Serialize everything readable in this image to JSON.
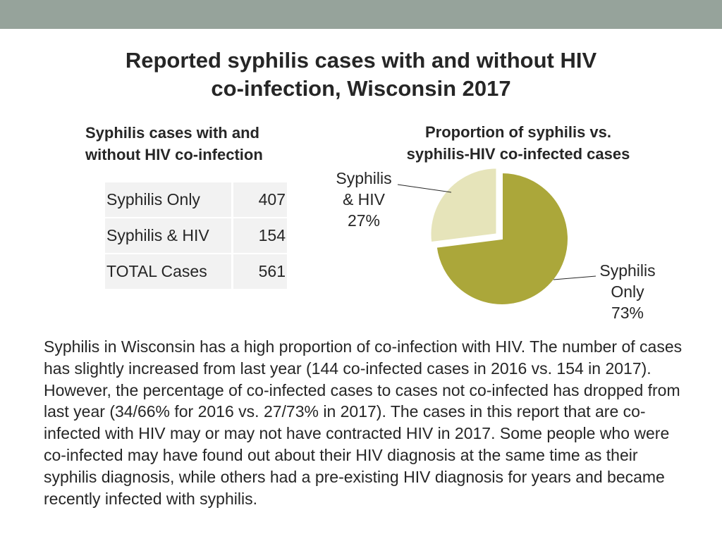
{
  "title": {
    "line1": "Reported syphilis cases with and without HIV",
    "line2": "co-infection, Wisconsin 2017"
  },
  "table": {
    "title_line1": "Syphilis cases with and",
    "title_line2": "without HIV co-infection",
    "rows": [
      {
        "label": "Syphilis Only",
        "value": "407"
      },
      {
        "label": "Syphilis & HIV",
        "value": "154"
      },
      {
        "label": "TOTAL Cases",
        "value": "561"
      }
    ]
  },
  "chart_data": {
    "type": "pie",
    "title_line1": "Proportion of syphilis vs.",
    "title_line2": "syphilis-HIV co-infected cases",
    "slices": [
      {
        "label_lines": [
          "Syphilis",
          "Only",
          "73%"
        ],
        "value": 73,
        "color": "#aba73a",
        "exploded": false
      },
      {
        "label_lines": [
          "Syphilis",
          "& HIV",
          "27%"
        ],
        "value": 27,
        "color": "#e6e4ba",
        "exploded": true
      }
    ],
    "legend": "none"
  },
  "body": {
    "paragraph": "Syphilis in Wisconsin has a high proportion of co-infection with HIV.  The number of cases has slightly increased from last year (144 co-infected cases in 2016 vs. 154 in 2017).  However, the percentage of co-infected cases to cases not co-infected has dropped from last year (34/66% for 2016 vs. 27/73% in 2017). The cases in this report that are co-infected with HIV may or may not have contracted HIV in 2017. Some people who were co-infected may have found out about their HIV diagnosis at the same time as their syphilis diagnosis, while others had a pre-existing HIV diagnosis for years and became recently infected with syphilis."
  }
}
